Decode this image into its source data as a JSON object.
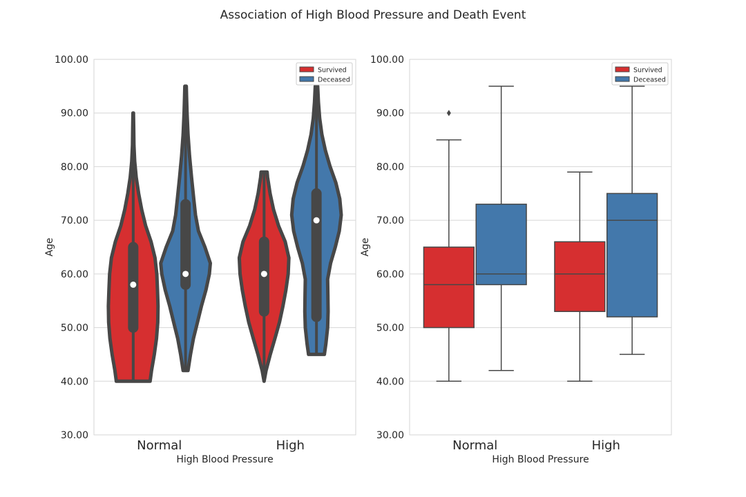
{
  "figure": {
    "title": "Association of High Blood Pressure and Death Event"
  },
  "colors": {
    "survived": "#d62f30",
    "deceased": "#4378ab",
    "outline": "#474747",
    "grid": "#d6d6d6",
    "frame": "#d6d6d6",
    "text": "#262626"
  },
  "chart_data": [
    {
      "type": "violin",
      "xlabel": "High Blood Pressure",
      "ylabel": "Age",
      "ylim": [
        30,
        100
      ],
      "yticks": [
        "30.00",
        "40.00",
        "50.00",
        "60.00",
        "70.00",
        "80.00",
        "90.00",
        "100.00"
      ],
      "categories": [
        "Normal",
        "High"
      ],
      "grid": true,
      "legend": {
        "placement": "top-right",
        "entries": [
          "Survived",
          "Deceased"
        ]
      },
      "series": [
        {
          "name": "Survived",
          "values": [
            {
              "category": "Normal",
              "min": 40,
              "q1": 50,
              "median": 58,
              "q3": 65,
              "max": 90,
              "density": [
                [
                  40,
                  0.68
                ],
                [
                  42,
                  0.74
                ],
                [
                  45,
                  0.85
                ],
                [
                  48,
                  0.94
                ],
                [
                  51,
                  0.99
                ],
                [
                  54,
                  1.0
                ],
                [
                  57,
                  0.98
                ],
                [
                  60,
                  0.95
                ],
                [
                  63,
                  0.88
                ],
                [
                  66,
                  0.72
                ],
                [
                  69,
                  0.5
                ],
                [
                  72,
                  0.34
                ],
                [
                  75,
                  0.22
                ],
                [
                  78,
                  0.12
                ],
                [
                  81,
                  0.06
                ],
                [
                  84,
                  0.03
                ],
                [
                  87,
                  0.02
                ],
                [
                  90,
                  0.01
                ]
              ]
            },
            {
              "category": "High",
              "min": 40,
              "q1": 53,
              "median": 60,
              "q3": 66,
              "max": 79,
              "density": [
                [
                  40,
                  0.0
                ],
                [
                  42,
                  0.08
                ],
                [
                  45,
                  0.25
                ],
                [
                  48,
                  0.44
                ],
                [
                  51,
                  0.62
                ],
                [
                  54,
                  0.76
                ],
                [
                  57,
                  0.88
                ],
                [
                  60,
                  0.97
                ],
                [
                  63,
                  1.0
                ],
                [
                  66,
                  0.85
                ],
                [
                  69,
                  0.58
                ],
                [
                  72,
                  0.38
                ],
                [
                  75,
                  0.24
                ],
                [
                  78,
                  0.14
                ],
                [
                  79,
                  0.12
                ]
              ]
            }
          ]
        },
        {
          "name": "Deceased",
          "values": [
            {
              "category": "Normal",
              "min": 42,
              "q1": 58,
              "median": 60,
              "q3": 73,
              "max": 95,
              "density": [
                [
                  42,
                  0.1
                ],
                [
                  45,
                  0.2
                ],
                [
                  48,
                  0.32
                ],
                [
                  51,
                  0.48
                ],
                [
                  54,
                  0.64
                ],
                [
                  57,
                  0.82
                ],
                [
                  60,
                  0.96
                ],
                [
                  62,
                  1.0
                ],
                [
                  65,
                  0.78
                ],
                [
                  68,
                  0.52
                ],
                [
                  71,
                  0.4
                ],
                [
                  74,
                  0.33
                ],
                [
                  78,
                  0.24
                ],
                [
                  82,
                  0.16
                ],
                [
                  86,
                  0.1
                ],
                [
                  90,
                  0.06
                ],
                [
                  93,
                  0.04
                ],
                [
                  95,
                  0.03
                ]
              ]
            },
            {
              "category": "High",
              "min": 45,
              "q1": 52,
              "median": 70,
              "q3": 75,
              "max": 95,
              "density": [
                [
                  45,
                  0.32
                ],
                [
                  47,
                  0.38
                ],
                [
                  50,
                  0.45
                ],
                [
                  53,
                  0.47
                ],
                [
                  56,
                  0.46
                ],
                [
                  59,
                  0.45
                ],
                [
                  62,
                  0.57
                ],
                [
                  65,
                  0.76
                ],
                [
                  68,
                  0.92
                ],
                [
                  71,
                  1.0
                ],
                [
                  74,
                  0.94
                ],
                [
                  77,
                  0.78
                ],
                [
                  80,
                  0.55
                ],
                [
                  83,
                  0.36
                ],
                [
                  86,
                  0.22
                ],
                [
                  89,
                  0.13
                ],
                [
                  92,
                  0.08
                ],
                [
                  95,
                  0.05
                ]
              ]
            }
          ]
        }
      ]
    },
    {
      "type": "box",
      "xlabel": "High Blood Pressure",
      "ylabel": "Age",
      "ylim": [
        30,
        100
      ],
      "yticks": [
        "30.00",
        "40.00",
        "50.00",
        "60.00",
        "70.00",
        "80.00",
        "90.00",
        "100.00"
      ],
      "categories": [
        "Normal",
        "High"
      ],
      "grid": true,
      "legend": {
        "placement": "top-right",
        "entries": [
          "Survived",
          "Deceased"
        ]
      },
      "series": [
        {
          "name": "Survived",
          "values": [
            {
              "category": "Normal",
              "whisker_low": 40,
              "q1": 50,
              "median": 58,
              "q3": 65,
              "whisker_high": 85,
              "outliers": [
                90
              ]
            },
            {
              "category": "High",
              "whisker_low": 40,
              "q1": 53,
              "median": 60,
              "q3": 66,
              "whisker_high": 79,
              "outliers": []
            }
          ]
        },
        {
          "name": "Deceased",
          "values": [
            {
              "category": "Normal",
              "whisker_low": 42,
              "q1": 58,
              "median": 60,
              "q3": 73,
              "whisker_high": 95,
              "outliers": []
            },
            {
              "category": "High",
              "whisker_low": 45,
              "q1": 52,
              "median": 70,
              "q3": 75,
              "whisker_high": 95,
              "outliers": []
            }
          ]
        }
      ]
    }
  ]
}
